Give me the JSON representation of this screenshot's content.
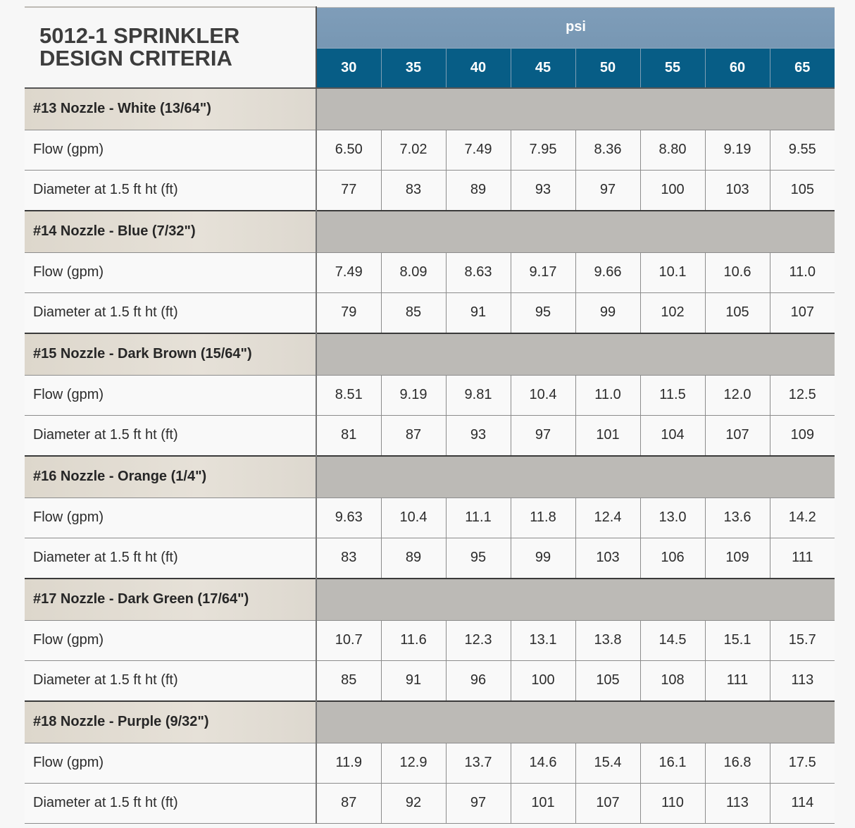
{
  "title": {
    "line1": "5012-1 SPRINKLER",
    "line2": "DESIGN CRITERIA"
  },
  "header": {
    "unit_label": "psi",
    "pressures": [
      "30",
      "35",
      "40",
      "45",
      "50",
      "55",
      "60",
      "65"
    ]
  },
  "colors": {
    "psi_band": "#7b9bb7",
    "pressure_band": "#075d86",
    "group_label_bg": "#e2ddd4",
    "group_fill_bg": "#bcbab6"
  },
  "groups": [
    {
      "label": "#13 Nozzle - White (13/64\")",
      "flow_label": "Flow (gpm)",
      "flow": [
        "6.50",
        "7.02",
        "7.49",
        "7.95",
        "8.36",
        "8.80",
        "9.19",
        "9.55"
      ],
      "diameter_label": "Diameter at 1.5 ft ht (ft)",
      "diameter": [
        "77",
        "83",
        "89",
        "93",
        "97",
        "100",
        "103",
        "105"
      ]
    },
    {
      "label": "#14 Nozzle - Blue (7/32\")",
      "flow_label": "Flow (gpm)",
      "flow": [
        "7.49",
        "8.09",
        "8.63",
        "9.17",
        "9.66",
        "10.1",
        "10.6",
        "11.0"
      ],
      "diameter_label": "Diameter at 1.5 ft ht (ft)",
      "diameter": [
        "79",
        "85",
        "91",
        "95",
        "99",
        "102",
        "105",
        "107"
      ]
    },
    {
      "label": "#15 Nozzle - Dark Brown (15/64\")",
      "flow_label": "Flow (gpm)",
      "flow": [
        "8.51",
        "9.19",
        "9.81",
        "10.4",
        "11.0",
        "11.5",
        "12.0",
        "12.5"
      ],
      "diameter_label": "Diameter at 1.5 ft ht (ft)",
      "diameter": [
        "81",
        "87",
        "93",
        "97",
        "101",
        "104",
        "107",
        "109"
      ]
    },
    {
      "label": "#16 Nozzle - Orange (1/4\")",
      "flow_label": "Flow (gpm)",
      "flow": [
        "9.63",
        "10.4",
        "11.1",
        "11.8",
        "12.4",
        "13.0",
        "13.6",
        "14.2"
      ],
      "diameter_label": "Diameter at 1.5 ft ht (ft)",
      "diameter": [
        "83",
        "89",
        "95",
        "99",
        "103",
        "106",
        "109",
        "111"
      ]
    },
    {
      "label": "#17 Nozzle - Dark Green (17/64\")",
      "flow_label": "Flow (gpm)",
      "flow": [
        "10.7",
        "11.6",
        "12.3",
        "13.1",
        "13.8",
        "14.5",
        "15.1",
        "15.7"
      ],
      "diameter_label": "Diameter at 1.5 ft ht (ft)",
      "diameter": [
        "85",
        "91",
        "96",
        "100",
        "105",
        "108",
        "111",
        "113"
      ]
    },
    {
      "label": "#18 Nozzle - Purple (9/32\")",
      "flow_label": "Flow (gpm)",
      "flow": [
        "11.9",
        "12.9",
        "13.7",
        "14.6",
        "15.4",
        "16.1",
        "16.8",
        "17.5"
      ],
      "diameter_label": "Diameter at 1.5 ft ht (ft)",
      "diameter": [
        "87",
        "92",
        "97",
        "101",
        "107",
        "110",
        "113",
        "114"
      ]
    }
  ]
}
